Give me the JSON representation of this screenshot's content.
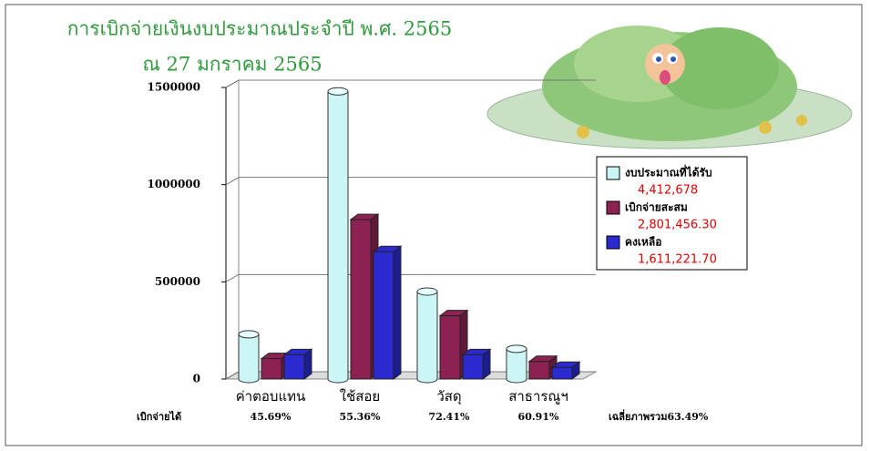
{
  "chart_data": {
    "type": "bar3d",
    "title": "การเบิกจ่ายเงินงบประมาณประจำปี พ.ศ. 2565",
    "subtitle": "ณ 27  มกราคม 2565",
    "categories": [
      "ค่าตอบแทน",
      "ใช้สอย",
      "วัสดุ",
      "สาธารณูฯ"
    ],
    "series": [
      {
        "name": "งบประมาณที่ได้รับ",
        "color": "#ccf5f5",
        "values": [
          230000,
          1480000,
          450000,
          155000
        ],
        "total": "4,412,678"
      },
      {
        "name": "เบิกจ่ายสะสม",
        "color": "#8b2252",
        "values": [
          105000,
          820000,
          325000,
          90000
        ],
        "total": "2,801,456.30"
      },
      {
        "name": "คงเหลือ",
        "color": "#2a2ad0",
        "values": [
          125000,
          655000,
          125000,
          60000
        ],
        "total": "1,611,221.70"
      }
    ],
    "ylim": [
      0,
      1500000
    ],
    "yticks": [
      0,
      500000,
      1000000,
      1500000
    ],
    "grid": true,
    "row_label": "เบิกจ่ายได้",
    "row_values": [
      "45.69%",
      "55.36%",
      "72.41%",
      "60.91%"
    ],
    "row_summary": "เฉลี่ยภาพรวม63.49%"
  }
}
